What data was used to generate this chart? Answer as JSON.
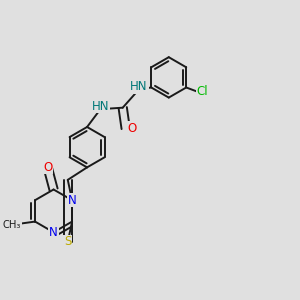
{
  "bg_color": "#e0e0e0",
  "bond_color": "#1a1a1a",
  "bond_width": 1.4,
  "dbo": 0.014,
  "atom_colors": {
    "N": "#0000ee",
    "O": "#ee0000",
    "S": "#bbaa00",
    "Cl": "#00bb00",
    "HN": "#007777",
    "C": "#1a1a1a"
  },
  "fs": 8.5,
  "fs_small": 7.2
}
